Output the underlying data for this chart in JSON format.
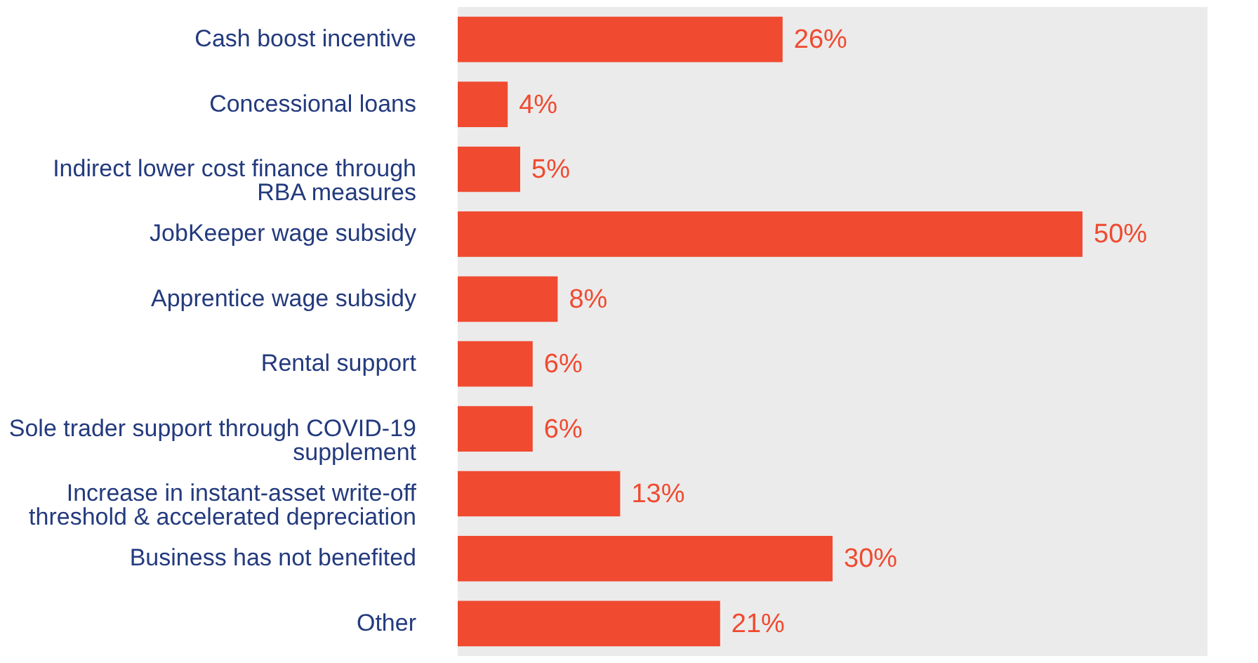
{
  "chart_data": {
    "type": "bar",
    "orientation": "horizontal",
    "categories": [
      "Cash boost incentive",
      "Concessional loans",
      "Indirect lower cost finance through RBA measures",
      "JobKeeper wage subsidy",
      "Apprentice wage subsidy",
      "Rental support",
      "Sole trader support through COVID-19 supplement",
      "Increase in instant-asset write-off threshold & accelerated depreciation",
      "Business has not benefited",
      "Other"
    ],
    "values": [
      26,
      4,
      5,
      50,
      8,
      6,
      6,
      13,
      30,
      21
    ],
    "value_labels": [
      "26%",
      "4%",
      "5%",
      "50%",
      "8%",
      "6%",
      "6%",
      "13%",
      "30%",
      "21%"
    ],
    "color": "#f04a30",
    "xlim": [
      0,
      60
    ],
    "tick_labels": "y"
  }
}
